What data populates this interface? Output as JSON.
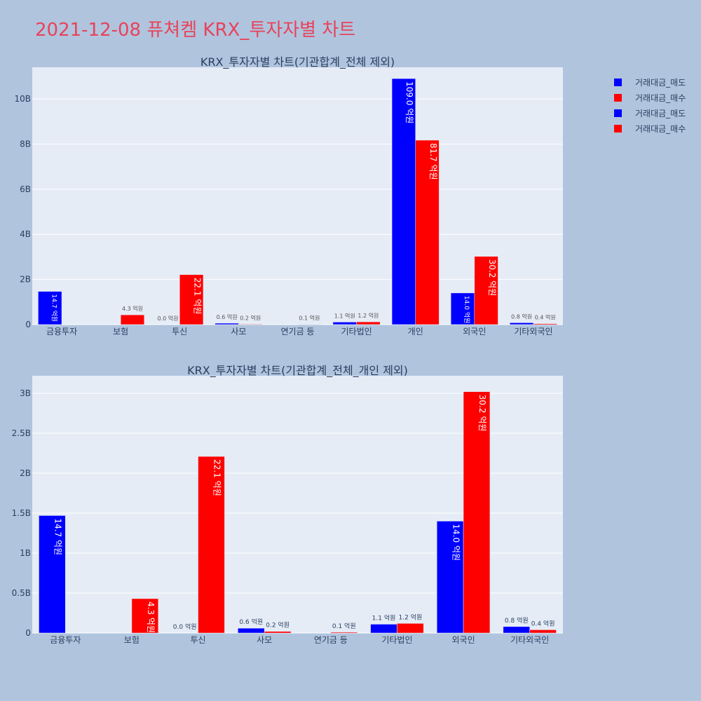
{
  "page": {
    "title": "2021-12-08 퓨쳐켐 KRX_투자자별 차트"
  },
  "legend": [
    {
      "label": "거래대금_매도",
      "color": "#0000ff"
    },
    {
      "label": "거래대금_매수",
      "color": "#ff0000"
    },
    {
      "label": "거래대금_매도",
      "color": "#0000ff"
    },
    {
      "label": "거래대금_매수",
      "color": "#ff0000"
    }
  ],
  "chart_data": [
    {
      "type": "bar",
      "title": "KRX_투자자별 차트(기관합계_전체 제외)",
      "categories": [
        "금융투자",
        "보험",
        "투신",
        "사모",
        "연기금 등",
        "기타법인",
        "개인",
        "외국인",
        "기타외국인"
      ],
      "ylim": [
        0,
        11400000000
      ],
      "yticks": [
        0,
        2000000000,
        4000000000,
        6000000000,
        8000000000,
        10000000000
      ],
      "ytick_labels": [
        "0",
        "2B",
        "4B",
        "6B",
        "8B",
        "10B"
      ],
      "grid": true,
      "series": [
        {
          "name": "거래대금_매도",
          "color": "#0000ff",
          "values": [
            1470000000,
            0,
            0,
            60000000,
            0,
            110000000,
            10900000000,
            1400000000,
            80000000
          ],
          "labels": [
            "14.7 억원",
            "",
            "0.0 억원",
            "0.6 억원",
            "",
            "1.1 억원",
            "109.0 억원",
            "14.0 억원",
            "0.8 억원"
          ]
        },
        {
          "name": "거래대금_매수",
          "color": "#ff0000",
          "values": [
            0,
            430000000,
            2210000000,
            20000000,
            10000000,
            120000000,
            8170000000,
            3020000000,
            40000000
          ],
          "labels": [
            "",
            "4.3 억원",
            "22.1 억원",
            "0.2 억원",
            "0.1 억원",
            "1.2 억원",
            "81.7 억원",
            "30.2 억원",
            "0.4 억원"
          ]
        }
      ]
    },
    {
      "type": "bar",
      "title": "KRX_투자자별 차트(기관합계_전체_개인 제외)",
      "categories": [
        "금융투자",
        "보험",
        "투신",
        "사모",
        "연기금 등",
        "기타법인",
        "외국인",
        "기타외국인"
      ],
      "ylim": [
        0,
        3220000000
      ],
      "yticks": [
        0,
        500000000,
        1000000000,
        1500000000,
        2000000000,
        2500000000,
        3000000000
      ],
      "ytick_labels": [
        "0",
        "0.5B",
        "1B",
        "1.5B",
        "2B",
        "2.5B",
        "3B"
      ],
      "grid": true,
      "series": [
        {
          "name": "거래대금_매도",
          "color": "#0000ff",
          "values": [
            1470000000,
            0,
            0,
            60000000,
            0,
            110000000,
            1400000000,
            80000000
          ],
          "labels": [
            "14.7 억원",
            "",
            "0.0 억원",
            "0.6 억원",
            "",
            "1.1 억원",
            "14.0 억원",
            "0.8 억원"
          ]
        },
        {
          "name": "거래대금_매수",
          "color": "#ff0000",
          "values": [
            0,
            430000000,
            2210000000,
            20000000,
            10000000,
            120000000,
            3020000000,
            40000000
          ],
          "labels": [
            "",
            "4.3 억원",
            "22.1 억원",
            "0.2 억원",
            "0.1 억원",
            "1.2 억원",
            "30.2 억원",
            "0.4 억원"
          ]
        }
      ]
    }
  ]
}
